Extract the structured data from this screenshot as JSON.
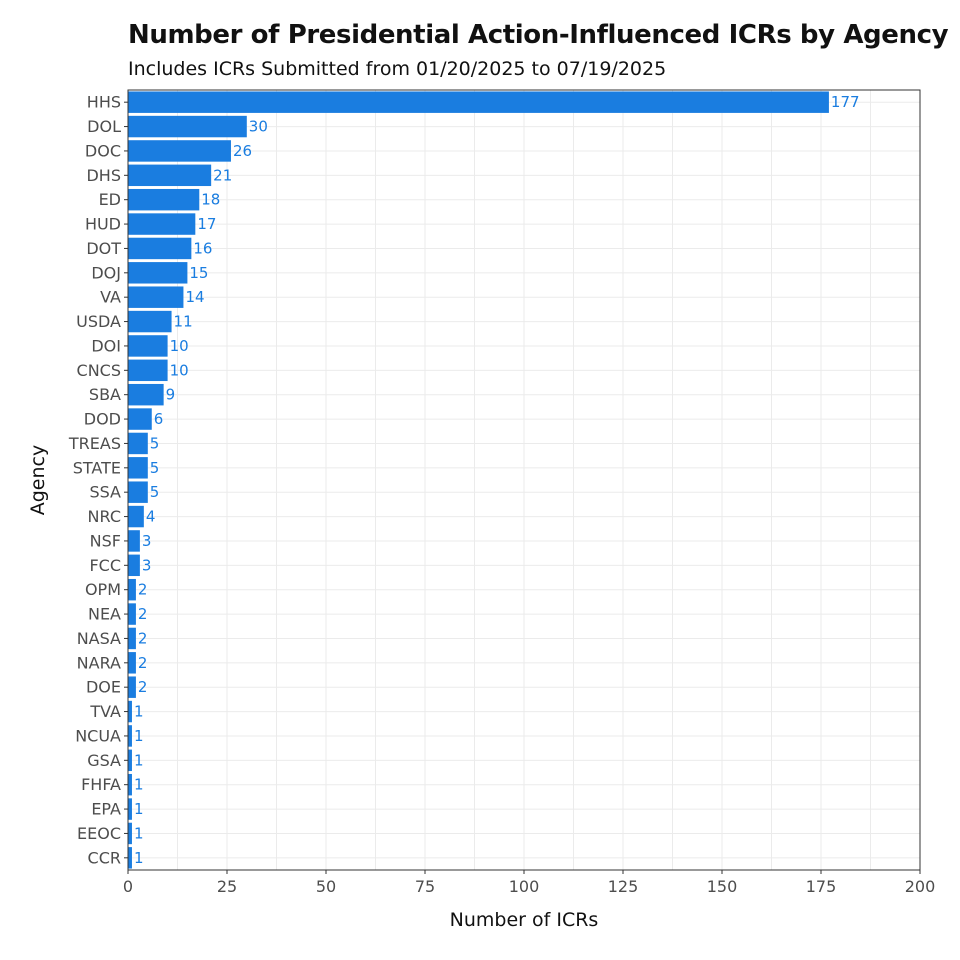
{
  "chart_data": {
    "type": "bar",
    "orientation": "horizontal",
    "title": "Number of Presidential Action-Influenced ICRs by Agency",
    "subtitle": "Includes ICRs Submitted from 01/20/2025 to 07/19/2025",
    "xlabel": "Number of ICRs",
    "ylabel": "Agency",
    "xlim": [
      0,
      200
    ],
    "xticks": [
      0,
      25,
      50,
      75,
      100,
      125,
      150,
      175,
      200
    ],
    "grid": true,
    "bar_color": "#1a7de0",
    "label_color": "#1a7de0",
    "categories": [
      "HHS",
      "DOL",
      "DOC",
      "DHS",
      "ED",
      "HUD",
      "DOT",
      "DOJ",
      "VA",
      "USDA",
      "DOI",
      "CNCS",
      "SBA",
      "DOD",
      "TREAS",
      "STATE",
      "SSA",
      "NRC",
      "NSF",
      "FCC",
      "OPM",
      "NEA",
      "NASA",
      "NARA",
      "DOE",
      "TVA",
      "NCUA",
      "GSA",
      "FHFA",
      "EPA",
      "EEOC",
      "CCR"
    ],
    "values": [
      177,
      30,
      26,
      21,
      18,
      17,
      16,
      15,
      14,
      11,
      10,
      10,
      9,
      6,
      5,
      5,
      5,
      4,
      3,
      3,
      2,
      2,
      2,
      2,
      2,
      1,
      1,
      1,
      1,
      1,
      1,
      1
    ]
  }
}
